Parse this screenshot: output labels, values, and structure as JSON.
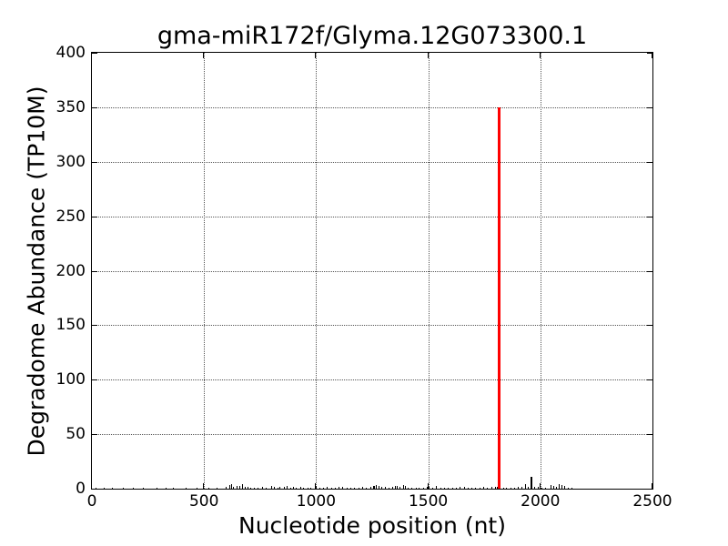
{
  "figure": {
    "background_color": "#ffffff"
  },
  "chart_data": {
    "type": "bar",
    "title": "gma-miR172f/Glyma.12G073300.1",
    "xlabel": "Nucleotide position (nt)",
    "ylabel": "Degradome Abundance (TP10M)",
    "xlim": [
      0,
      2500
    ],
    "ylim": [
      0,
      400
    ],
    "xticks": [
      0,
      500,
      1000,
      1500,
      2000,
      2500
    ],
    "yticks": [
      0,
      50,
      100,
      150,
      200,
      250,
      300,
      350,
      400
    ],
    "grid": true,
    "grid_linestyle": "dotted",
    "grid_color": "#555555",
    "axes_color": "#000000",
    "background_color": "#ffffff",
    "highlight_peak": {
      "x": 1815,
      "value": 350,
      "color": "#ff0000"
    },
    "noise_color": "#000000",
    "noise_points": [
      [
        20,
        0.7
      ],
      [
        55,
        0.9
      ],
      [
        90,
        0.5
      ],
      [
        140,
        0.8
      ],
      [
        185,
        0.5
      ],
      [
        230,
        0.8
      ],
      [
        290,
        0.5
      ],
      [
        330,
        0.7
      ],
      [
        365,
        0.5
      ],
      [
        420,
        0.8
      ],
      [
        470,
        0.6
      ],
      [
        520,
        0.9
      ],
      [
        560,
        1.2
      ],
      [
        598,
        1.5
      ],
      [
        615,
        3.2
      ],
      [
        622,
        3.8
      ],
      [
        632,
        2.0
      ],
      [
        647,
        2.5
      ],
      [
        660,
        2.2
      ],
      [
        670,
        4.2
      ],
      [
        682,
        2.0
      ],
      [
        695,
        1.5
      ],
      [
        710,
        1.0
      ],
      [
        725,
        0.8
      ],
      [
        742,
        1.2
      ],
      [
        760,
        1.5
      ],
      [
        778,
        1.0
      ],
      [
        801,
        2.2
      ],
      [
        815,
        1.5
      ],
      [
        828,
        1.2
      ],
      [
        840,
        2.0
      ],
      [
        857,
        1.8
      ],
      [
        872,
        2.2
      ],
      [
        885,
        1.2
      ],
      [
        898,
        1.5
      ],
      [
        912,
        0.8
      ],
      [
        930,
        1.6
      ],
      [
        945,
        1.0
      ],
      [
        962,
        0.8
      ],
      [
        978,
        1.2
      ],
      [
        995,
        1.8
      ],
      [
        1002,
        2.6
      ],
      [
        1015,
        1.2
      ],
      [
        1032,
        0.9
      ],
      [
        1050,
        1.3
      ],
      [
        1068,
        0.8
      ],
      [
        1085,
        1.0
      ],
      [
        1102,
        1.4
      ],
      [
        1120,
        1.6
      ],
      [
        1138,
        0.9
      ],
      [
        1155,
        1.2
      ],
      [
        1172,
        0.8
      ],
      [
        1190,
        1.0
      ],
      [
        1208,
        1.4
      ],
      [
        1225,
        1.1
      ],
      [
        1242,
        1.6
      ],
      [
        1255,
        2.8
      ],
      [
        1262,
        2.2
      ],
      [
        1270,
        3.0
      ],
      [
        1280,
        2.4
      ],
      [
        1292,
        2.0
      ],
      [
        1308,
        1.5
      ],
      [
        1325,
        1.0
      ],
      [
        1340,
        1.3
      ],
      [
        1352,
        2.2
      ],
      [
        1362,
        2.6
      ],
      [
        1375,
        2.0
      ],
      [
        1388,
        3.0
      ],
      [
        1398,
        2.2
      ],
      [
        1412,
        1.2
      ],
      [
        1428,
        0.9
      ],
      [
        1445,
        1.2
      ],
      [
        1460,
        1.0
      ],
      [
        1478,
        0.8
      ],
      [
        1495,
        1.4
      ],
      [
        1502,
        2.1
      ],
      [
        1518,
        1.0
      ],
      [
        1537,
        2.3
      ],
      [
        1555,
        1.1
      ],
      [
        1572,
        0.8
      ],
      [
        1590,
        1.2
      ],
      [
        1608,
        1.0
      ],
      [
        1625,
        0.9
      ],
      [
        1642,
        1.3
      ],
      [
        1660,
        1.5
      ],
      [
        1678,
        1.0
      ],
      [
        1695,
        1.2
      ],
      [
        1712,
        0.9
      ],
      [
        1730,
        1.0
      ],
      [
        1748,
        1.4
      ],
      [
        1765,
        1.2
      ],
      [
        1782,
        1.5
      ],
      [
        1798,
        1.8
      ],
      [
        1808,
        1.5
      ],
      [
        1822,
        1.6
      ],
      [
        1835,
        1.2
      ],
      [
        1850,
        0.9
      ],
      [
        1868,
        1.0
      ],
      [
        1885,
        1.2
      ],
      [
        1902,
        1.4
      ],
      [
        1918,
        1.6
      ],
      [
        1934,
        4.0
      ],
      [
        1948,
        1.5
      ],
      [
        1962,
        10.5
      ],
      [
        1976,
        1.6
      ],
      [
        1990,
        2.0
      ],
      [
        2008,
        1.2
      ],
      [
        2025,
        0.9
      ],
      [
        2048,
        3.4
      ],
      [
        2060,
        2.2
      ],
      [
        2072,
        1.5
      ],
      [
        2086,
        4.1
      ],
      [
        2096,
        3.4
      ],
      [
        2110,
        2.5
      ],
      [
        2125,
        1.2
      ],
      [
        2142,
        0.8
      ]
    ]
  }
}
